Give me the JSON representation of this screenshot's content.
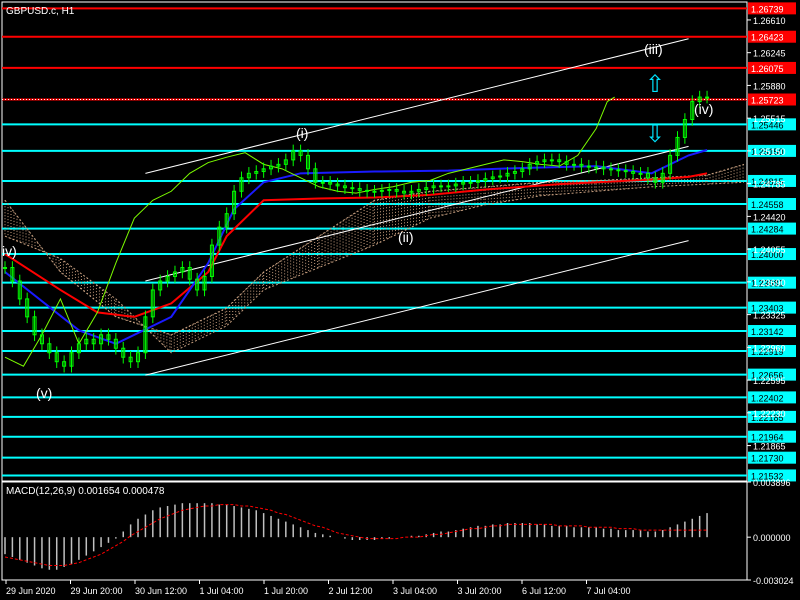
{
  "colors": {
    "background": "#000000",
    "frame": "#ffffff",
    "price_text": "#ffffff",
    "candles": "#00ff00",
    "chikou": "#7cfc00",
    "kumo_dots": "#c8a080",
    "red_line": "#ff0000",
    "blue_line": "#1a1aff",
    "channel": "#ffffff",
    "support": "#00ffff",
    "resistance": "#ff0000",
    "macd_hist": "#c0c0c0",
    "macd_signal": "#ff0000",
    "arrow": "#00e5ff",
    "wave_label": "#ffffff"
  },
  "chart_data": [
    {
      "type": "line",
      "title": "GBPUSD.c, H1",
      "ylim": [
        1.2147,
        1.2681
      ],
      "y_ticks": [
        1.2661,
        1.26245,
        1.2588,
        1.25515,
        1.2515,
        1.24785,
        1.2442,
        1.24055,
        1.2369,
        1.23325,
        1.2296,
        1.22595,
        1.2223,
        1.21865
      ],
      "resistance_levels": [
        {
          "value": 1.26739,
          "label": "1.26739"
        },
        {
          "value": 1.26423,
          "label": "1.26423"
        },
        {
          "value": 1.26075,
          "label": "1.26075"
        },
        {
          "value": 1.25723,
          "label": "1.25723"
        }
      ],
      "support_levels": [
        {
          "value": 1.25446,
          "label": "1.25446"
        },
        {
          "value": 1.2515,
          "label": "1.25150"
        },
        {
          "value": 1.24815,
          "label": "1.24815"
        },
        {
          "value": 1.24558,
          "label": "1.24558"
        },
        {
          "value": 1.24284,
          "label": "1.24284"
        },
        {
          "value": 1.24,
          "label": "1.24000"
        },
        {
          "value": 1.23681,
          "label": "1.23681"
        },
        {
          "value": 1.23403,
          "label": "1.23403"
        },
        {
          "value": 1.23142,
          "label": "1.23142"
        },
        {
          "value": 1.22919,
          "label": "1.22919"
        },
        {
          "value": 1.22656,
          "label": "1.22656"
        },
        {
          "value": 1.22402,
          "label": "1.22402"
        },
        {
          "value": 1.22185,
          "label": "1.22185"
        },
        {
          "value": 1.21964,
          "label": "1.21964"
        },
        {
          "value": 1.2173,
          "label": "1.21730"
        },
        {
          "value": 1.21532,
          "label": "1.21532"
        }
      ],
      "bid_price": 1.25723,
      "x_labels": [
        "29 Jun 2020",
        "29 Jun 20:00",
        "30 Jun 12:00",
        "1 Jul 04:00",
        "1 Jul 20:00",
        "2 Jul 12:00",
        "3 Jul 04:00",
        "3 Jul 20:00",
        "6 Jul 12:00",
        "7 Jul 04:00"
      ],
      "series": [
        {
          "style": "candles",
          "x": [
            0,
            2,
            4,
            6,
            8,
            10,
            12,
            14,
            16,
            18,
            20,
            22,
            24,
            26,
            28,
            30,
            32,
            34,
            36,
            38,
            40,
            42,
            44,
            46,
            48,
            50,
            52,
            54,
            56,
            58,
            60,
            62,
            64,
            66,
            68,
            70,
            72,
            74,
            76,
            78,
            80,
            82,
            84,
            86,
            88,
            90,
            92,
            94,
            96,
            98,
            100,
            102,
            104,
            106,
            108,
            110,
            112,
            114,
            116,
            118,
            120,
            122,
            124,
            126,
            128,
            130,
            132,
            134,
            136,
            138,
            140,
            142,
            144,
            146,
            148,
            150,
            152,
            154,
            156,
            158,
            160,
            162,
            164,
            166,
            168,
            170,
            172,
            174,
            176,
            178,
            180,
            182,
            184,
            186,
            188,
            190
          ],
          "values": [
            1.2385,
            1.237,
            1.235,
            1.233,
            1.231,
            1.23,
            1.229,
            1.228,
            1.2275,
            1.229,
            1.23,
            1.2305,
            1.23,
            1.231,
            1.2305,
            1.2295,
            1.2285,
            1.228,
            1.229,
            1.233,
            1.236,
            1.237,
            1.2375,
            1.238,
            1.2385,
            1.2372,
            1.236,
            1.2375,
            1.241,
            1.243,
            1.2445,
            1.247,
            1.2485,
            1.249,
            1.2492,
            1.2495,
            1.2498,
            1.25,
            1.2505,
            1.2515,
            1.251,
            1.2495,
            1.248,
            1.248,
            1.2478,
            1.2476,
            1.2474,
            1.2473,
            1.2471,
            1.247,
            1.247,
            1.2471,
            1.2472,
            1.247,
            1.2468,
            1.247,
            1.2472,
            1.2474,
            1.2476,
            1.2476,
            1.2476,
            1.2478,
            1.248,
            1.248,
            1.2482,
            1.2484,
            1.2486,
            1.2487,
            1.249,
            1.2492,
            1.2495,
            1.25,
            1.2503,
            1.2505,
            1.2505,
            1.2503,
            1.25,
            1.25,
            1.2498,
            1.2497,
            1.2497,
            1.2495,
            1.2494,
            1.2493,
            1.2492,
            1.249,
            1.249,
            1.2485,
            1.248,
            1.249,
            1.251,
            1.253,
            1.255,
            1.257,
            1.2575,
            1.2575
          ]
        },
        {
          "style": "red-line",
          "x": [
            0,
            15,
            25,
            35,
            45,
            55,
            60,
            70,
            85,
            100,
            115,
            130,
            150,
            165,
            175,
            185,
            190
          ],
          "values": [
            1.24,
            1.236,
            1.2335,
            1.233,
            1.2345,
            1.238,
            1.242,
            1.246,
            1.2462,
            1.2463,
            1.2466,
            1.2472,
            1.2478,
            1.2481,
            1.2483,
            1.2486,
            1.249
          ]
        },
        {
          "style": "blue-line",
          "x": [
            0,
            20,
            30,
            45,
            55,
            62,
            70,
            80,
            100,
            120,
            140,
            160,
            175,
            185,
            190
          ],
          "values": [
            1.238,
            1.2315,
            1.23,
            1.233,
            1.239,
            1.245,
            1.248,
            1.249,
            1.2492,
            1.2493,
            1.2496,
            1.2498,
            1.249,
            1.251,
            1.2516
          ]
        },
        {
          "style": "chikou",
          "x": [
            0,
            5,
            10,
            15,
            20,
            25,
            30,
            35,
            40,
            45,
            50,
            55,
            60,
            65,
            70,
            75,
            80,
            85,
            90,
            95,
            100,
            105,
            110,
            115,
            120,
            125,
            130,
            135,
            140,
            145,
            150,
            155,
            160,
            163,
            165
          ],
          "values": [
            1.2285,
            1.2275,
            1.231,
            1.235,
            1.23,
            1.2335,
            1.239,
            1.244,
            1.246,
            1.247,
            1.249,
            1.2502,
            1.2508,
            1.2513,
            1.25,
            1.2495,
            1.2485,
            1.2475,
            1.247,
            1.2468,
            1.2472,
            1.2475,
            1.248,
            1.2482,
            1.249,
            1.2495,
            1.25,
            1.2505,
            1.2503,
            1.25,
            1.2498,
            1.251,
            1.254,
            1.257,
            1.2575
          ]
        }
      ],
      "kumo_cloud": {
        "x": [
          0,
          15,
          30,
          45,
          60,
          70,
          85,
          100,
          115,
          130,
          145,
          160,
          175,
          190,
          200
        ],
        "span_a": [
          1.246,
          1.238,
          1.233,
          1.231,
          1.234,
          1.238,
          1.242,
          1.246,
          1.247,
          1.2475,
          1.248,
          1.2482,
          1.2485,
          1.2488,
          1.25
        ],
        "span_b": [
          1.242,
          1.2395,
          1.235,
          1.229,
          1.232,
          1.236,
          1.2385,
          1.241,
          1.244,
          1.2455,
          1.2465,
          1.247,
          1.2475,
          1.2478,
          1.248
        ]
      },
      "channel_lines": [
        {
          "x": [
            38,
            185
          ],
          "values": [
            1.249,
            1.264
          ]
        },
        {
          "x": [
            38,
            185
          ],
          "values": [
            1.237,
            1.252
          ]
        },
        {
          "x": [
            38,
            185
          ],
          "values": [
            1.2265,
            1.2415
          ]
        }
      ],
      "wave_labels": [
        "iv)",
        "(i)",
        "(ii)",
        "(iii)",
        "(iv)",
        "(v)"
      ],
      "arrows": [
        {
          "name": "up",
          "glyph": "⇧"
        },
        {
          "name": "down",
          "glyph": "⇩"
        }
      ]
    },
    {
      "type": "bar",
      "title": "MACD(12,26,9) 0.001654 0.000478",
      "ylim": [
        -0.003024,
        0.003896
      ],
      "y_ticks": [
        {
          "value": 0.003896,
          "label": "0.003896"
        },
        {
          "value": 0.0,
          "label": "0.000000"
        },
        {
          "value": -0.003024,
          "label": "-0.003024"
        }
      ],
      "x": [
        0,
        2,
        4,
        6,
        8,
        10,
        12,
        14,
        16,
        18,
        20,
        22,
        24,
        26,
        28,
        30,
        32,
        34,
        36,
        38,
        40,
        42,
        44,
        46,
        48,
        50,
        52,
        54,
        56,
        58,
        60,
        62,
        64,
        66,
        68,
        70,
        72,
        74,
        76,
        78,
        80,
        82,
        84,
        86,
        88,
        90,
        92,
        94,
        96,
        98,
        100,
        102,
        104,
        106,
        108,
        110,
        112,
        114,
        116,
        118,
        120,
        122,
        124,
        126,
        128,
        130,
        132,
        134,
        136,
        138,
        140,
        142,
        144,
        146,
        148,
        150,
        152,
        154,
        156,
        158,
        160,
        162,
        164,
        166,
        168,
        170,
        172,
        174,
        176,
        178,
        180,
        182,
        184,
        186,
        188,
        190
      ],
      "values": [
        -0.0012,
        -0.0014,
        -0.0016,
        -0.0018,
        -0.002,
        -0.0022,
        -0.0023,
        -0.0023,
        -0.0021,
        -0.0019,
        -0.0016,
        -0.0013,
        -0.001,
        -0.0007,
        -0.0004,
        -0.0001,
        0.0004,
        0.0009,
        0.0013,
        0.0016,
        0.0019,
        0.0021,
        0.0022,
        0.0023,
        0.0024,
        0.0024,
        0.0024,
        0.0024,
        0.0024,
        0.0023,
        0.0023,
        0.0022,
        0.0021,
        0.002,
        0.0019,
        0.0017,
        0.0015,
        0.0013,
        0.0011,
        0.0009,
        0.0007,
        0.0005,
        0.0003,
        0.0002,
        0.0001,
        0.0,
        -0.0001,
        -0.0002,
        -0.0002,
        -0.0002,
        -0.0002,
        -0.0001,
        -0.0001,
        0.0,
        0.0,
        0.0001,
        0.0001,
        0.0002,
        0.0003,
        0.0004,
        0.0004,
        0.0005,
        0.0006,
        0.0007,
        0.0008,
        0.0008,
        0.0009,
        0.0009,
        0.001,
        0.001,
        0.001,
        0.001,
        0.0009,
        0.0009,
        0.0008,
        0.0008,
        0.0008,
        0.0007,
        0.0007,
        0.0007,
        0.0007,
        0.0006,
        0.0006,
        0.0005,
        0.0005,
        0.0005,
        0.0005,
        0.0004,
        0.0004,
        0.0005,
        0.0007,
        0.0009,
        0.0011,
        0.0013,
        0.0015,
        0.0017
      ],
      "signal": [
        -0.0014,
        -0.0015,
        -0.0016,
        -0.0017,
        -0.0018,
        -0.0019,
        -0.002,
        -0.002,
        -0.002,
        -0.0019,
        -0.0018,
        -0.0016,
        -0.0014,
        -0.0012,
        -0.0009,
        -0.0006,
        -0.0003,
        0.0001,
        0.0004,
        0.0007,
        0.001,
        0.0013,
        0.0015,
        0.0017,
        0.0019,
        0.002,
        0.0021,
        0.0022,
        0.0022,
        0.0023,
        0.0023,
        0.0023,
        0.0022,
        0.0022,
        0.0021,
        0.002,
        0.0019,
        0.0017,
        0.0016,
        0.0014,
        0.0012,
        0.001,
        0.0008,
        0.0007,
        0.0005,
        0.0003,
        0.0002,
        0.0001,
        0.0,
        -0.0001,
        -0.0001,
        -0.0001,
        -0.0001,
        -0.0001,
        0.0,
        0.0,
        0.0,
        0.0001,
        0.0002,
        0.0002,
        0.0003,
        0.0004,
        0.0005,
        0.0006,
        0.0006,
        0.0007,
        0.0008,
        0.0008,
        0.0009,
        0.0009,
        0.0009,
        0.0009,
        0.0009,
        0.0009,
        0.0009,
        0.0008,
        0.0008,
        0.0008,
        0.0008,
        0.0007,
        0.0007,
        0.0007,
        0.0007,
        0.0006,
        0.0006,
        0.0006,
        0.0005,
        0.0005,
        0.0005,
        0.0005,
        0.0005,
        0.0005,
        0.0005,
        0.0005,
        0.0005,
        0.0005
      ]
    }
  ]
}
